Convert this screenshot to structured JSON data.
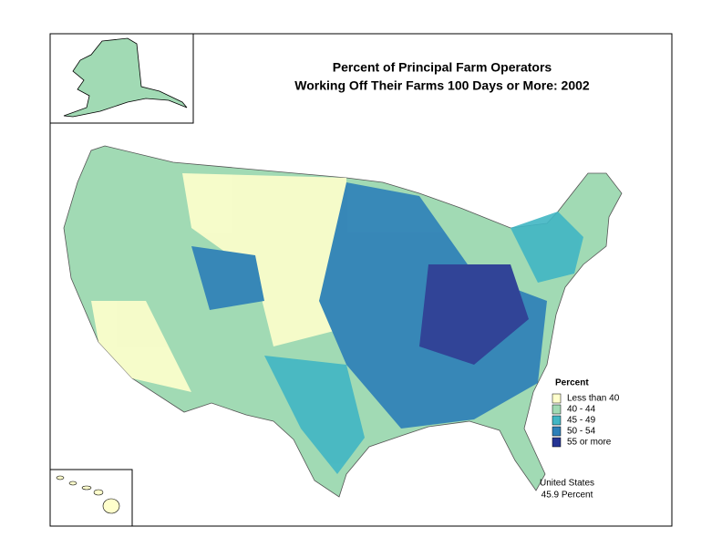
{
  "title": [
    "Percent of Principal Farm Operators",
    "Working Off Their Farms 100 Days or More:  2002"
  ],
  "legend": {
    "title": "Percent",
    "items": [
      {
        "label": "Less than 40",
        "color": "#ffffcc"
      },
      {
        "label": "40 - 44",
        "color": "#a1dab4"
      },
      {
        "label": "45 - 49",
        "color": "#41b6c4"
      },
      {
        "label": "50 - 54",
        "color": "#2c7fb8"
      },
      {
        "label": "55 or more",
        "color": "#253494"
      }
    ]
  },
  "note": [
    "United States",
    "45.9 Percent"
  ]
}
